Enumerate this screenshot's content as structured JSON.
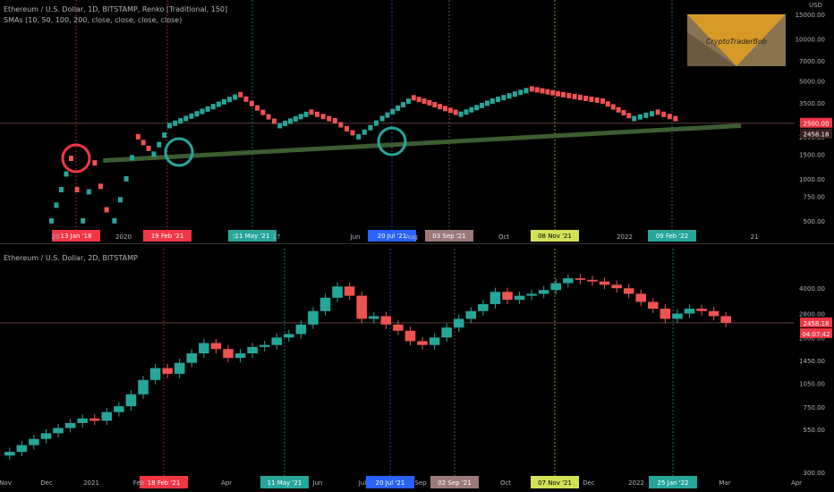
{
  "top_chart": {
    "title": "Ethereum / U.S. Dollar, 1D, BITSTAMP, Renko [Traditional, 150]",
    "subtitle": "SMAs (10, 50, 100, 200, close, close, close, close)",
    "currency": "USD",
    "price_label_current": "2500.00",
    "price_label_last": "2458.18",
    "logo_text": "CryptoTraderBob"
  },
  "bottom_chart": {
    "title": "Ethereum / U.S. Dollar, 2D, BITSTAMP",
    "price_label_current": "2458.18",
    "price_label_countdown": "04:07:42"
  },
  "chart_data": [
    {
      "type": "line",
      "title": "Ethereum / U.S. Dollar, 1D, BITSTAMP, Renko [Traditional, 150]",
      "scale": "log",
      "ylim": [
        450,
        15500
      ],
      "y_ticks": [
        "500.00",
        "750.00",
        "1000.00",
        "1500.00",
        "2000.00",
        "2500.00",
        "3500.00",
        "5000.00",
        "7000.00",
        "10000.00",
        "15000.00"
      ],
      "x_ticks": [
        "20",
        "2020",
        "5",
        "17",
        "Jun",
        "Aug",
        "Oct",
        "2022",
        "21"
      ],
      "date_markers": [
        {
          "label": "13 Jan '18",
          "color": "#f23645"
        },
        {
          "label": "19 Feb '21",
          "color": "#f23645"
        },
        {
          "label": "11 May '21",
          "color": "#26a69a"
        },
        {
          "label": "20 Jul '21",
          "color": "#2962ff"
        },
        {
          "label": "03 Sep '21",
          "color": "#9c7a7a"
        },
        {
          "label": "08 Nov '21",
          "color": "#d4e157"
        },
        {
          "label": "09 Feb '22",
          "color": "#26a69a"
        }
      ],
      "renko_path": [
        [
          0,
          500
        ],
        [
          0.05,
          1400
        ],
        [
          0.08,
          500
        ],
        [
          0.11,
          1300
        ],
        [
          0.14,
          600
        ],
        [
          0.16,
          500
        ],
        [
          0.22,
          2000
        ],
        [
          0.26,
          1500
        ],
        [
          0.3,
          2400
        ],
        [
          0.48,
          4000
        ],
        [
          0.58,
          2400
        ],
        [
          0.66,
          3000
        ],
        [
          0.72,
          2600
        ],
        [
          0.78,
          2000
        ],
        [
          0.84,
          2700
        ],
        [
          0.92,
          3800
        ],
        [
          0.96,
          3500
        ],
        [
          1.04,
          2900
        ],
        [
          1.12,
          3600
        ],
        [
          1.22,
          4400
        ],
        [
          1.3,
          4000
        ],
        [
          1.4,
          3600
        ],
        [
          1.48,
          2700
        ],
        [
          1.54,
          3000
        ],
        [
          1.6,
          2600
        ]
      ],
      "trendline": [
        [
          0.08,
          1350
        ],
        [
          1.82,
          2400
        ]
      ],
      "circles": [
        {
          "at": "13 Jan '18",
          "color": "#f23645"
        },
        {
          "at": "19 Feb '21",
          "color": "#26a69a"
        },
        {
          "at": "20 Jul '21",
          "color": "#26a69a"
        }
      ],
      "grid": false
    },
    {
      "type": "line",
      "title": "Ethereum / U.S. Dollar, 2D, BITSTAMP",
      "scale": "log",
      "ylim": [
        300,
        6000
      ],
      "y_ticks": [
        "300.00",
        "550.00",
        "750.00",
        "1050.00",
        "1450.00",
        "2000.00",
        "2800.00",
        "4000.00"
      ],
      "x_ticks": [
        "Nov",
        "Dec",
        "2021",
        "Feb",
        "Apr",
        "Jun",
        "Jul",
        "Sep",
        "Oct",
        "Dec",
        "2022",
        "Mar",
        "Apr"
      ],
      "date_markers": [
        {
          "label": "18 Feb '21",
          "color": "#f23645"
        },
        {
          "label": "11 May '21",
          "color": "#26a69a"
        },
        {
          "label": "20 Jul '21",
          "color": "#2962ff"
        },
        {
          "label": "02 Sep '21",
          "color": "#9c7a7a"
        },
        {
          "label": "07 Nov '21",
          "color": "#d4e157"
        },
        {
          "label": "25 Jan '22",
          "color": "#26a69a"
        }
      ],
      "closes": [
        400,
        440,
        480,
        520,
        560,
        600,
        640,
        620,
        700,
        760,
        900,
        1100,
        1300,
        1200,
        1400,
        1600,
        1850,
        1700,
        1500,
        1600,
        1750,
        1800,
        2000,
        2100,
        2400,
        2900,
        3500,
        4100,
        3600,
        2600,
        2700,
        2400,
        2200,
        1900,
        1800,
        2000,
        2300,
        2600,
        2900,
        3200,
        3800,
        3400,
        3600,
        3700,
        3900,
        4300,
        4600,
        4500,
        4400,
        4200,
        4000,
        3700,
        3300,
        3000,
        2600,
        2800,
        3000,
        2900,
        2700,
        2458
      ],
      "grid": false
    }
  ]
}
